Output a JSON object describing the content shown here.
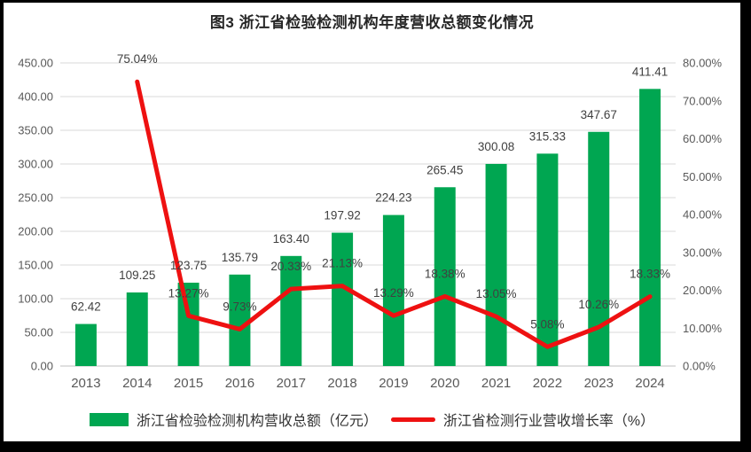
{
  "window": {
    "outer_background": "#000000",
    "panel_background": "#ffffff"
  },
  "chart_data": {
    "type": "combo-bar-line",
    "title": "图3  浙江省检验检测机构年度营收总额变化情况",
    "categories": [
      "2013",
      "2014",
      "2015",
      "2016",
      "2017",
      "2018",
      "2019",
      "2020",
      "2021",
      "2022",
      "2023",
      "2024"
    ],
    "series": [
      {
        "name": "浙江省检验检测机构营收总额（亿元）",
        "type": "bar",
        "axis": "left",
        "color": "#00a651",
        "values": [
          62.42,
          109.25,
          123.75,
          135.79,
          163.4,
          197.92,
          224.23,
          265.45,
          300.08,
          315.33,
          347.67,
          411.41
        ],
        "labels": [
          "62.42",
          "109.25",
          "123.75",
          "135.79",
          "163.40",
          "197.92",
          "224.23",
          "265.45",
          "300.08",
          "315.33",
          "347.67",
          "411.41"
        ]
      },
      {
        "name": "浙江省检测行业营收增长率（%）",
        "type": "line",
        "axis": "right",
        "color": "#ee1111",
        "values": [
          null,
          75.04,
          13.27,
          9.73,
          20.33,
          21.13,
          13.29,
          18.38,
          13.05,
          5.08,
          10.26,
          18.33
        ],
        "labels": [
          "",
          "75.04%",
          "13.27%",
          "9.73%",
          "20.33%",
          "21.13%",
          "13.29%",
          "18.38%",
          "13.05%",
          "5.08%",
          "10.26%",
          "18.33%"
        ]
      }
    ],
    "left_axis": {
      "min": 0,
      "max": 450,
      "step": 50,
      "ticks": [
        "0.00",
        "50.00",
        "100.00",
        "150.00",
        "200.00",
        "250.00",
        "300.00",
        "350.00",
        "400.00",
        "450.00"
      ]
    },
    "right_axis": {
      "min": 0,
      "max": 80,
      "step": 10,
      "ticks": [
        "0.00%",
        "10.00%",
        "20.00%",
        "30.00%",
        "40.00%",
        "50.00%",
        "60.00%",
        "70.00%",
        "80.00%"
      ]
    },
    "grid": true,
    "legend_position": "bottom",
    "colors": {
      "gridline": "#d9d9d9",
      "axis_line": "#bfbfbf",
      "tick_text": "#595959",
      "data_label_text": "#404040"
    }
  }
}
